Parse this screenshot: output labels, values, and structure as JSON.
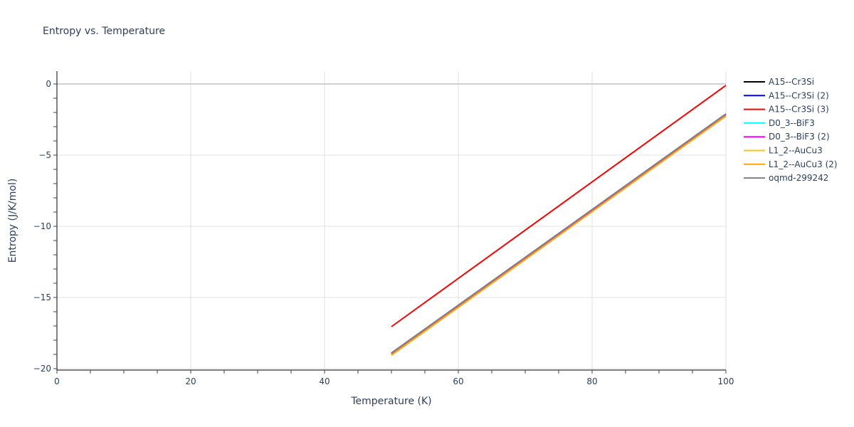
{
  "chart_data": {
    "type": "line",
    "title": "Entropy vs. Temperature",
    "xlabel": "Temperature (K)",
    "ylabel": "Entropy (J/K/mol)",
    "xlim": [
      0,
      100
    ],
    "ylim": [
      -20.1,
      0.9
    ],
    "xticks": [
      0,
      20,
      40,
      60,
      80,
      100
    ],
    "yticks": [
      0,
      -5,
      -10,
      -15,
      -20
    ],
    "ytick_labels": [
      "0",
      "−5",
      "−10",
      "−15",
      "−20"
    ],
    "grid": true,
    "legend_position": "right",
    "x": [
      50,
      100
    ],
    "series": [
      {
        "name": "A15--Cr3Si",
        "color": "#000000",
        "values": [
          -18.95,
          -2.15
        ]
      },
      {
        "name": "A15--Cr3Si (2)",
        "color": "#0000ff",
        "values": [
          -18.95,
          -2.15
        ]
      },
      {
        "name": "A15--Cr3Si (3)",
        "color": "#ff0000",
        "values": [
          -17.05,
          -0.1
        ]
      },
      {
        "name": "D0_3--BiF3",
        "color": "#00ffff",
        "values": [
          -18.95,
          -2.15
        ]
      },
      {
        "name": "D0_3--BiF3 (2)",
        "color": "#ff00ff",
        "values": [
          -18.95,
          -2.15
        ]
      },
      {
        "name": "L1_2--AuCu3",
        "color": "#f5c518",
        "values": [
          -19.05,
          -2.25
        ]
      },
      {
        "name": "L1_2--AuCu3 (2)",
        "color": "#ffa500",
        "values": [
          -19.05,
          -2.25
        ]
      },
      {
        "name": "oqmd-299242",
        "color": "#808080",
        "values": [
          -18.9,
          -2.1
        ]
      }
    ]
  }
}
